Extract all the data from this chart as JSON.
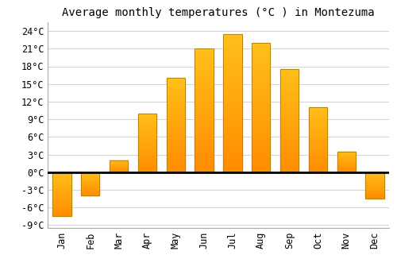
{
  "title": "Average monthly temperatures (°C ) in Montezuma",
  "months": [
    "Jan",
    "Feb",
    "Mar",
    "Apr",
    "May",
    "Jun",
    "Jul",
    "Aug",
    "Sep",
    "Oct",
    "Nov",
    "Dec"
  ],
  "values": [
    -7.5,
    -4.0,
    2.0,
    10.0,
    16.0,
    21.0,
    23.5,
    22.0,
    17.5,
    11.0,
    3.5,
    -4.5
  ],
  "bar_color_top": "#FFD966",
  "bar_color_bottom": "#FFA500",
  "bar_edge_color": "#B8860B",
  "background_color": "#FFFFFF",
  "plot_bg_color": "#FFFFFF",
  "grid_color": "#CCCCCC",
  "ylim": [
    -9.5,
    25.5
  ],
  "yticks": [
    -9,
    -6,
    -3,
    0,
    3,
    6,
    9,
    12,
    15,
    18,
    21,
    24
  ],
  "ytick_labels": [
    "-9°C",
    "-6°C",
    "-3°C",
    "0°C",
    "3°C",
    "6°C",
    "9°C",
    "12°C",
    "15°C",
    "18°C",
    "21°C",
    "24°C"
  ],
  "title_fontsize": 10,
  "tick_fontsize": 8.5,
  "bar_width": 0.65
}
